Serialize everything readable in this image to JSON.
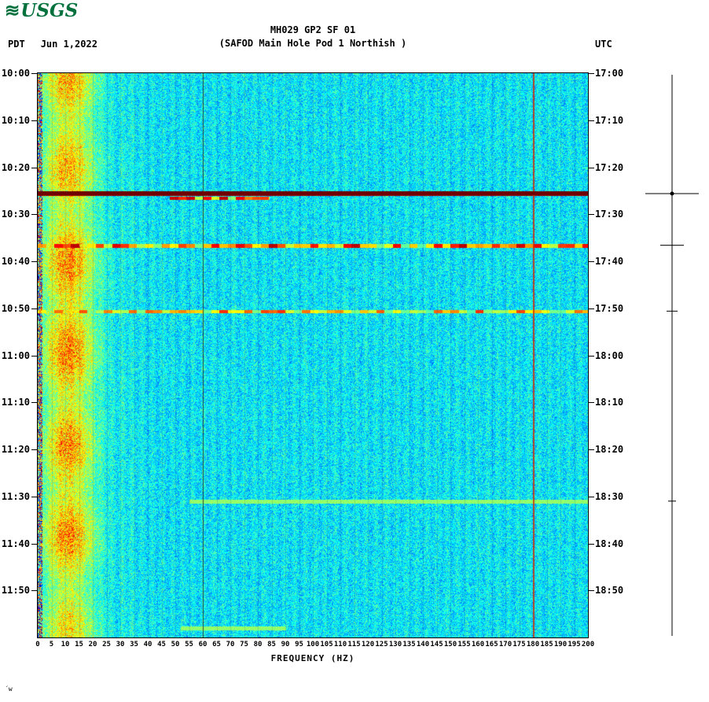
{
  "header": {
    "logo_wave": "≋",
    "logo_text": "USGS",
    "title_line1": "MH029 GP2 SF 01",
    "title_line2": "(SAFOD Main Hole Pod 1 Northish )",
    "left_timezone": "PDT",
    "date": "Jun 1,2022",
    "right_timezone": "UTC"
  },
  "footer": {
    "xlabel": "FREQUENCY (HZ)",
    "corner_note": "´w"
  },
  "colors": {
    "logo_green": "#00703c",
    "strong_event_red": "#6f0000",
    "line_60hz": "#2a2a2a",
    "line_180hz": "#d23000"
  },
  "chart_data": {
    "type": "heatmap",
    "title": "MH029 GP2 SF 01",
    "subtitle": "(SAFOD Main Hole Pod 1 Northish )",
    "xlabel": "FREQUENCY (HZ)",
    "xlim": [
      0,
      200
    ],
    "x_ticks": [
      0,
      5,
      10,
      15,
      20,
      25,
      30,
      35,
      40,
      45,
      50,
      55,
      60,
      65,
      70,
      75,
      80,
      85,
      90,
      95,
      100,
      105,
      110,
      115,
      120,
      125,
      130,
      135,
      140,
      145,
      150,
      155,
      160,
      165,
      170,
      175,
      180,
      185,
      190,
      195,
      200
    ],
    "duration_minutes": 120,
    "time_start_pdt": "10:00",
    "time_end_pdt": "12:00",
    "time_start_utc": "17:00",
    "time_end_utc": "19:00",
    "left_time_ticks": [
      "10:00",
      "10:10",
      "10:20",
      "10:30",
      "10:40",
      "10:50",
      "11:00",
      "11:10",
      "11:20",
      "11:30",
      "11:40",
      "11:50"
    ],
    "right_time_ticks": [
      "17:00",
      "17:10",
      "17:20",
      "17:30",
      "17:40",
      "17:50",
      "18:00",
      "18:10",
      "18:20",
      "18:30",
      "18:40",
      "18:50"
    ],
    "colormap": "jet",
    "background_level": 0.36,
    "low_freq_band": {
      "freq_range_hz": [
        2,
        30
      ],
      "peak_hz": 11,
      "boost": 0.27,
      "note": "persistent yellow-green low-frequency noise band, brighter patches near 10:20-10:40 and 11:05-11:20 PDT"
    },
    "grid_line_every_hz": 5,
    "vertical_lines": [
      {
        "freq_hz": 60,
        "color": "#2a2a2a",
        "note": "60 Hz powerline interference"
      },
      {
        "freq_hz": 180,
        "color": "#d23000",
        "note": "180 Hz harmonic (red-orange line)"
      }
    ],
    "events": [
      {
        "start_minute": 25.1,
        "end_minute": 26.0,
        "freq_range_hz": [
          0,
          200
        ],
        "level": 0.97,
        "style": "solid",
        "time_pdt": "10:25",
        "time_utc": "17:25",
        "note": "strong broadband event - solid dark red line across all frequencies"
      },
      {
        "start_minute": 26.2,
        "end_minute": 26.9,
        "freq_range_hz": [
          48,
          84
        ],
        "level": 0.8,
        "style": "patchy",
        "time_pdt": "10:26",
        "time_utc": "17:26",
        "note": "coda energy 48-84 Hz just below main event"
      },
      {
        "start_minute": 36.3,
        "end_minute": 37.1,
        "freq_range_hz": [
          0,
          200
        ],
        "level": 0.8,
        "style": "patchy",
        "time_pdt": "10:36",
        "time_utc": "17:36",
        "note": "moderate broadband event - segmented dark red / yellow line"
      },
      {
        "start_minute": 50.3,
        "end_minute": 51.0,
        "freq_range_hz": [
          0,
          200
        ],
        "level": 0.62,
        "style": "patchy",
        "time_pdt": "10:50",
        "time_utc": "17:50",
        "note": "weaker broadband event - yellow/orange segmented line"
      },
      {
        "start_minute": 90.7,
        "end_minute": 91.4,
        "freq_range_hz": [
          55,
          200
        ],
        "level": 0.5,
        "style": "faint",
        "time_pdt": "11:30",
        "time_utc": "18:30",
        "note": "faint pale line"
      },
      {
        "start_minute": 117.6,
        "end_minute": 118.4,
        "freq_range_hz": [
          52,
          90
        ],
        "level": 0.5,
        "style": "faint",
        "time_pdt": "11:58",
        "time_utc": "18:58",
        "note": "faint pale cyan patch near bottom"
      }
    ]
  },
  "trace": {
    "note": "amplitude trace at right edge with deflections at event times",
    "marks": [
      {
        "minute": 25.6,
        "half_length": 34,
        "dot": true
      },
      {
        "minute": 36.6,
        "half_length": 15,
        "dot": false
      },
      {
        "minute": 50.6,
        "half_length": 7,
        "dot": false
      },
      {
        "minute": 91.0,
        "half_length": 5,
        "dot": false
      }
    ]
  }
}
